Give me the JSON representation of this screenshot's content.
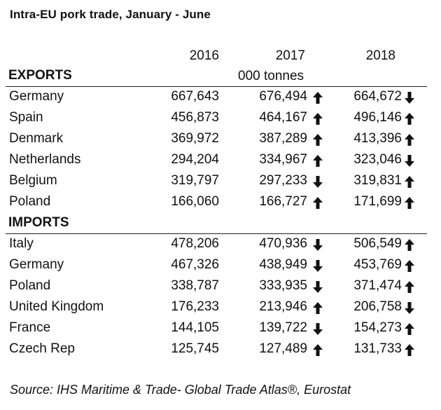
{
  "title": "Intra-EU pork trade, January - June",
  "years": [
    "2016",
    "2017",
    "2018"
  ],
  "unit": "000 tonnes",
  "exports": {
    "heading": "EXPORTS",
    "rows": [
      {
        "country": "Germany",
        "v2016": "667,643",
        "v2017": "676,494",
        "dir2017": "up",
        "v2018": "664,672",
        "dir2018": "down"
      },
      {
        "country": "Spain",
        "v2016": "456,873",
        "v2017": "464,167",
        "dir2017": "up",
        "v2018": "496,146",
        "dir2018": "up"
      },
      {
        "country": "Denmark",
        "v2016": "369,972",
        "v2017": "387,289",
        "dir2017": "up",
        "v2018": "413,396",
        "dir2018": "up"
      },
      {
        "country": "Netherlands",
        "v2016": "294,204",
        "v2017": "334,967",
        "dir2017": "up",
        "v2018": "323,046",
        "dir2018": "down"
      },
      {
        "country": "Belgium",
        "v2016": "319,797",
        "v2017": "297,233",
        "dir2017": "down",
        "v2018": "319,831",
        "dir2018": "up"
      },
      {
        "country": "Poland",
        "v2016": "166,060",
        "v2017": "166,727",
        "dir2017": "up",
        "v2018": "171,699",
        "dir2018": "up"
      }
    ]
  },
  "imports": {
    "heading": "IMPORTS",
    "rows": [
      {
        "country": "Italy",
        "v2016": "478,206",
        "v2017": "470,936",
        "dir2017": "down",
        "v2018": "506,549",
        "dir2018": "up"
      },
      {
        "country": "Germany",
        "v2016": "467,326",
        "v2017": "438,949",
        "dir2017": "down",
        "v2018": "453,769",
        "dir2018": "up"
      },
      {
        "country": "Poland",
        "v2016": "338,787",
        "v2017": "333,935",
        "dir2017": "down",
        "v2018": "371,474",
        "dir2018": "up"
      },
      {
        "country": "United Kingdom",
        "v2016": "176,233",
        "v2017": "213,946",
        "dir2017": "up",
        "v2018": "206,758",
        "dir2018": "down"
      },
      {
        "country": "France",
        "v2016": "144,105",
        "v2017": "139,722",
        "dir2017": "down",
        "v2018": "154,273",
        "dir2018": "up"
      },
      {
        "country": "Czech Rep",
        "v2016": "125,745",
        "v2017": "127,489",
        "dir2017": "up",
        "v2018": "131,733",
        "dir2018": "up"
      }
    ]
  },
  "icons": {
    "up": "arrow-up-icon",
    "down": "arrow-down-icon"
  },
  "source": "Source: IHS Maritime & Trade- Global Trade Atlas®, Eurostat"
}
